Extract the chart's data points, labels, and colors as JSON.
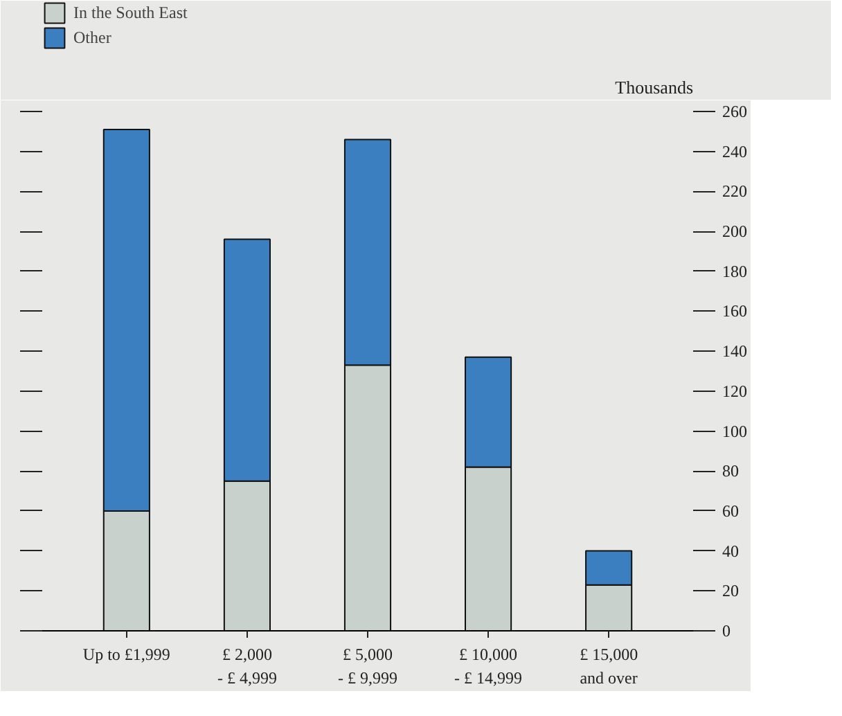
{
  "chart_data": {
    "type": "bar",
    "stacked": true,
    "ylabel": "Thousands",
    "categories": [
      "Up to £1,999",
      "£ 2,000\n- £ 4,999",
      "£ 5,000\n- £ 9,999",
      "£ 10,000\n- £ 14,999",
      "£ 15,000\nand over"
    ],
    "series": [
      {
        "name": "In the South East",
        "color": "#c9d1cc",
        "values": [
          60,
          75,
          133,
          82,
          23
        ]
      },
      {
        "name": "Other",
        "color": "#3b7fc0",
        "values": [
          191,
          121,
          113,
          55,
          17
        ]
      }
    ],
    "ylim": [
      0,
      260
    ],
    "yticks": [
      0,
      20,
      40,
      60,
      80,
      100,
      120,
      140,
      160,
      180,
      200,
      220,
      240,
      260
    ],
    "grid": false,
    "legend": "top left"
  }
}
